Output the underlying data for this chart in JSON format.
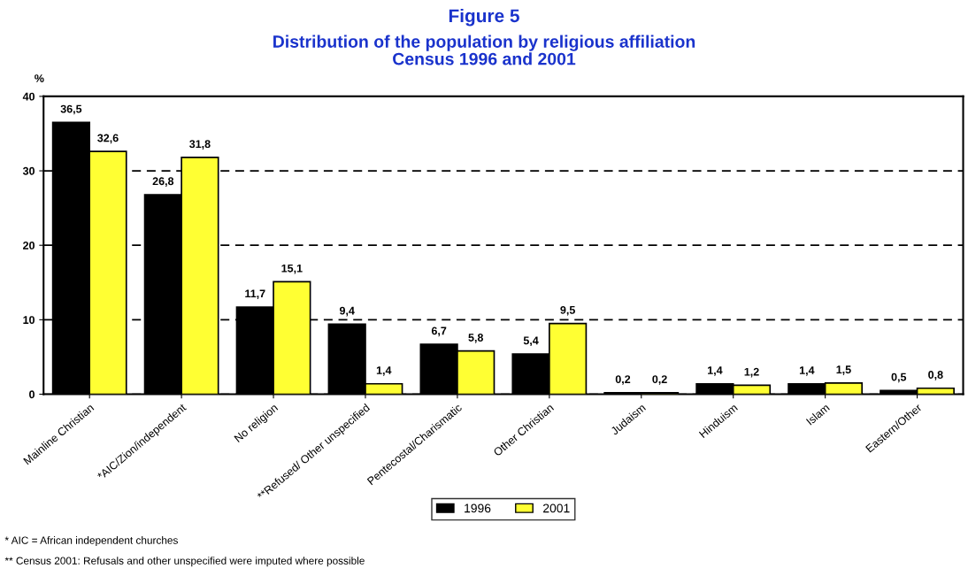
{
  "chart_data": {
    "type": "bar",
    "title": "Figure 5",
    "subtitle": "Distribution of the population by religious affiliation\nCensus 1996 and 2001",
    "ylabel": "%",
    "categories": [
      "Mainline Christian",
      "*AIC/Zion/independent",
      "No religion",
      "**Refused/ Other unspecified",
      "Pentecostal/Charismatic",
      "Other Christian",
      "Judaism",
      "Hinduism",
      "Islam",
      "Eastern/Other"
    ],
    "series": [
      {
        "name": "1996",
        "color": "#000000",
        "values": [
          36.5,
          26.8,
          11.7,
          9.4,
          6.7,
          5.4,
          0.2,
          1.4,
          1.4,
          0.5
        ],
        "value_labels": [
          "36,5",
          "26,8",
          "11,7",
          "9,4",
          "6,7",
          "5,4",
          "0,2",
          "1,4",
          "1,4",
          "0,5"
        ]
      },
      {
        "name": "2001",
        "color": "#ffff33",
        "values": [
          32.6,
          31.8,
          15.1,
          1.4,
          5.8,
          9.5,
          0.2,
          1.2,
          1.5,
          0.8
        ],
        "value_labels": [
          "32,6",
          "31,8",
          "15,1",
          "1,4",
          "5,8",
          "9,5",
          "0,2",
          "1,2",
          "1,5",
          "0,8"
        ]
      }
    ],
    "ylim": [
      0,
      40
    ],
    "yticks": [
      0,
      10,
      20,
      30,
      40
    ],
    "grid": "y",
    "legend": "bottom",
    "annotations": [
      "* AIC = African independent churches",
      "** Census 2001: Refusals and other unspecified were imputed where possible"
    ]
  }
}
